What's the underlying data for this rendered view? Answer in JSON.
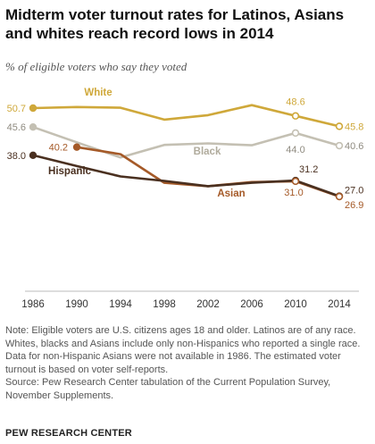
{
  "header": {
    "title": "Midterm voter turnout rates for Latinos, Asians and whites reach record lows in 2014",
    "subtitle": "% of eligible voters who say they voted"
  },
  "chart_data": {
    "type": "line",
    "x": [
      1986,
      1990,
      1994,
      1998,
      2002,
      2006,
      2010,
      2014
    ],
    "ylim": [
      20,
      55
    ],
    "grid": false,
    "legend": "direct labels on lines",
    "series": [
      {
        "name": "White",
        "color": "#cfa83a",
        "values": [
          50.7,
          51.0,
          50.8,
          47.6,
          48.8,
          51.5,
          48.6,
          45.8
        ],
        "labels": [
          {
            "x": 1986,
            "text": "50.7"
          },
          {
            "x": 2010,
            "text": "48.6"
          },
          {
            "x": 2014,
            "text": "45.8"
          }
        ]
      },
      {
        "name": "Black",
        "color": "#c4c0b3",
        "values": [
          45.6,
          41.5,
          37.4,
          40.8,
          41.2,
          40.7,
          44.0,
          40.6
        ],
        "labels": [
          {
            "x": 1986,
            "text": "45.6"
          },
          {
            "x": 2010,
            "text": "44.0"
          },
          {
            "x": 2014,
            "text": "40.6"
          }
        ]
      },
      {
        "name": "Hispanic",
        "color": "#4a3020",
        "values": [
          38.0,
          35.1,
          32.3,
          31.1,
          29.7,
          30.6,
          31.2,
          27.0
        ],
        "labels": [
          {
            "x": 1986,
            "text": "38.0"
          },
          {
            "x": 2010,
            "text": "31.2"
          },
          {
            "x": 2014,
            "text": "27.0"
          }
        ]
      },
      {
        "name": "Asian",
        "color": "#a55a28",
        "values": [
          null,
          40.2,
          38.3,
          30.6,
          29.7,
          30.8,
          31.0,
          26.9
        ],
        "labels": [
          {
            "x": 1990,
            "text": "40.2"
          },
          {
            "x": 2010,
            "text": "31.0"
          },
          {
            "x": 2014,
            "text": "26.9"
          }
        ]
      }
    ]
  },
  "notes": [
    "Note: Eligible voters are U.S. citizens ages 18 and older. Latinos are of any race.",
    "Whites, blacks and Asians include only non-Hispanics who reported a single race.",
    "Data for non-Hispanic Asians were not available in 1986. The estimated voter",
    "turnout is based on voter self-reports.",
    "Source: Pew Research Center tabulation of the Current Population Survey,",
    "November Supplements."
  ],
  "brand": "PEW RESEARCH CENTER"
}
